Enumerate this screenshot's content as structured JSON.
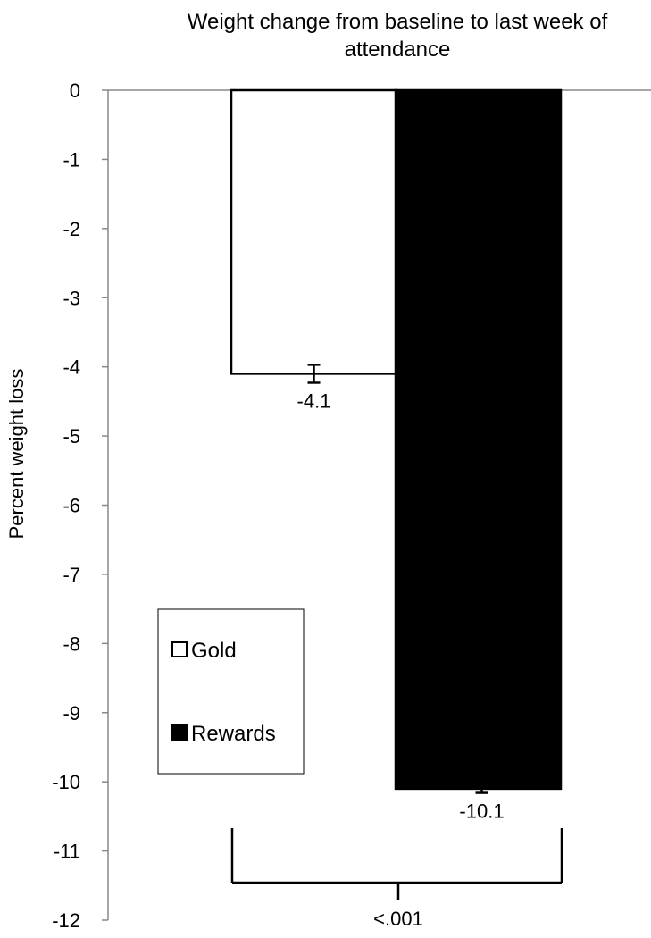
{
  "chart_data": {
    "type": "bar",
    "title_lines": [
      "Weight change from baseline to last week of",
      "attendance"
    ],
    "ylabel": "Percent weight loss",
    "xlabel": "",
    "ylim": [
      -12,
      0
    ],
    "yticks": [
      "0",
      "-1",
      "-2",
      "-3",
      "-4",
      "-5",
      "-6",
      "-7",
      "-8",
      "-9",
      "-10",
      "-11",
      "-12"
    ],
    "series": [
      {
        "name": "Gold",
        "value": -4.1,
        "label": "-4.1",
        "error": 0.13,
        "fill": "#ffffff"
      },
      {
        "name": "Rewards",
        "value": -10.1,
        "label": "-10.1",
        "error": 0.06,
        "fill": "#000000"
      }
    ],
    "legend": {
      "position": "bottom-left",
      "entries": [
        "Gold",
        "Rewards"
      ]
    },
    "significance": {
      "label": "<.001"
    },
    "grid": false
  }
}
